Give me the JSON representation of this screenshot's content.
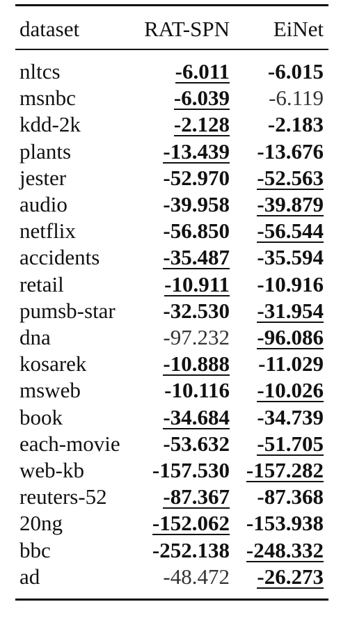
{
  "table": {
    "columns": [
      "dataset",
      "RAT-SPN",
      "EiNet"
    ],
    "rows": [
      {
        "dataset": "nltcs",
        "rat": "-6.011",
        "rat_bold": true,
        "rat_ul": true,
        "ei": "-6.015",
        "ei_bold": true,
        "ei_ul": false
      },
      {
        "dataset": "msnbc",
        "rat": "-6.039",
        "rat_bold": true,
        "rat_ul": true,
        "ei": "-6.119",
        "ei_bold": false,
        "ei_ul": false
      },
      {
        "dataset": "kdd-2k",
        "rat": "-2.128",
        "rat_bold": true,
        "rat_ul": true,
        "ei": "-2.183",
        "ei_bold": true,
        "ei_ul": false
      },
      {
        "dataset": "plants",
        "rat": "-13.439",
        "rat_bold": true,
        "rat_ul": true,
        "ei": "-13.676",
        "ei_bold": true,
        "ei_ul": false
      },
      {
        "dataset": "jester",
        "rat": "-52.970",
        "rat_bold": true,
        "rat_ul": false,
        "ei": "-52.563",
        "ei_bold": true,
        "ei_ul": true
      },
      {
        "dataset": "audio",
        "rat": "-39.958",
        "rat_bold": true,
        "rat_ul": false,
        "ei": "-39.879",
        "ei_bold": true,
        "ei_ul": true
      },
      {
        "dataset": "netflix",
        "rat": "-56.850",
        "rat_bold": true,
        "rat_ul": false,
        "ei": "-56.544",
        "ei_bold": true,
        "ei_ul": true
      },
      {
        "dataset": "accidents",
        "rat": "-35.487",
        "rat_bold": true,
        "rat_ul": true,
        "ei": "-35.594",
        "ei_bold": true,
        "ei_ul": false
      },
      {
        "dataset": "retail",
        "rat": "-10.911",
        "rat_bold": true,
        "rat_ul": true,
        "ei": "-10.916",
        "ei_bold": true,
        "ei_ul": false
      },
      {
        "dataset": "pumsb-star",
        "rat": "-32.530",
        "rat_bold": true,
        "rat_ul": false,
        "ei": "-31.954",
        "ei_bold": true,
        "ei_ul": true
      },
      {
        "dataset": "dna",
        "rat": "-97.232",
        "rat_bold": false,
        "rat_ul": false,
        "ei": "-96.086",
        "ei_bold": true,
        "ei_ul": true
      },
      {
        "dataset": "kosarek",
        "rat": "-10.888",
        "rat_bold": true,
        "rat_ul": true,
        "ei": "-11.029",
        "ei_bold": true,
        "ei_ul": false
      },
      {
        "dataset": "msweb",
        "rat": "-10.116",
        "rat_bold": true,
        "rat_ul": false,
        "ei": "-10.026",
        "ei_bold": true,
        "ei_ul": true
      },
      {
        "dataset": "book",
        "rat": "-34.684",
        "rat_bold": true,
        "rat_ul": true,
        "ei": "-34.739",
        "ei_bold": true,
        "ei_ul": false
      },
      {
        "dataset": "each-movie",
        "rat": "-53.632",
        "rat_bold": true,
        "rat_ul": false,
        "ei": "-51.705",
        "ei_bold": true,
        "ei_ul": true
      },
      {
        "dataset": "web-kb",
        "rat": "-157.530",
        "rat_bold": true,
        "rat_ul": false,
        "ei": "-157.282",
        "ei_bold": true,
        "ei_ul": true
      },
      {
        "dataset": "reuters-52",
        "rat": "-87.367",
        "rat_bold": true,
        "rat_ul": true,
        "ei": "-87.368",
        "ei_bold": true,
        "ei_ul": false
      },
      {
        "dataset": "20ng",
        "rat": "-152.062",
        "rat_bold": true,
        "rat_ul": true,
        "ei": "-153.938",
        "ei_bold": true,
        "ei_ul": false
      },
      {
        "dataset": "bbc",
        "rat": "-252.138",
        "rat_bold": true,
        "rat_ul": false,
        "ei": "-248.332",
        "ei_bold": true,
        "ei_ul": true
      },
      {
        "dataset": "ad",
        "rat": "-48.472",
        "rat_bold": false,
        "rat_ul": false,
        "ei": "-26.273",
        "ei_bold": true,
        "ei_ul": true
      }
    ]
  }
}
